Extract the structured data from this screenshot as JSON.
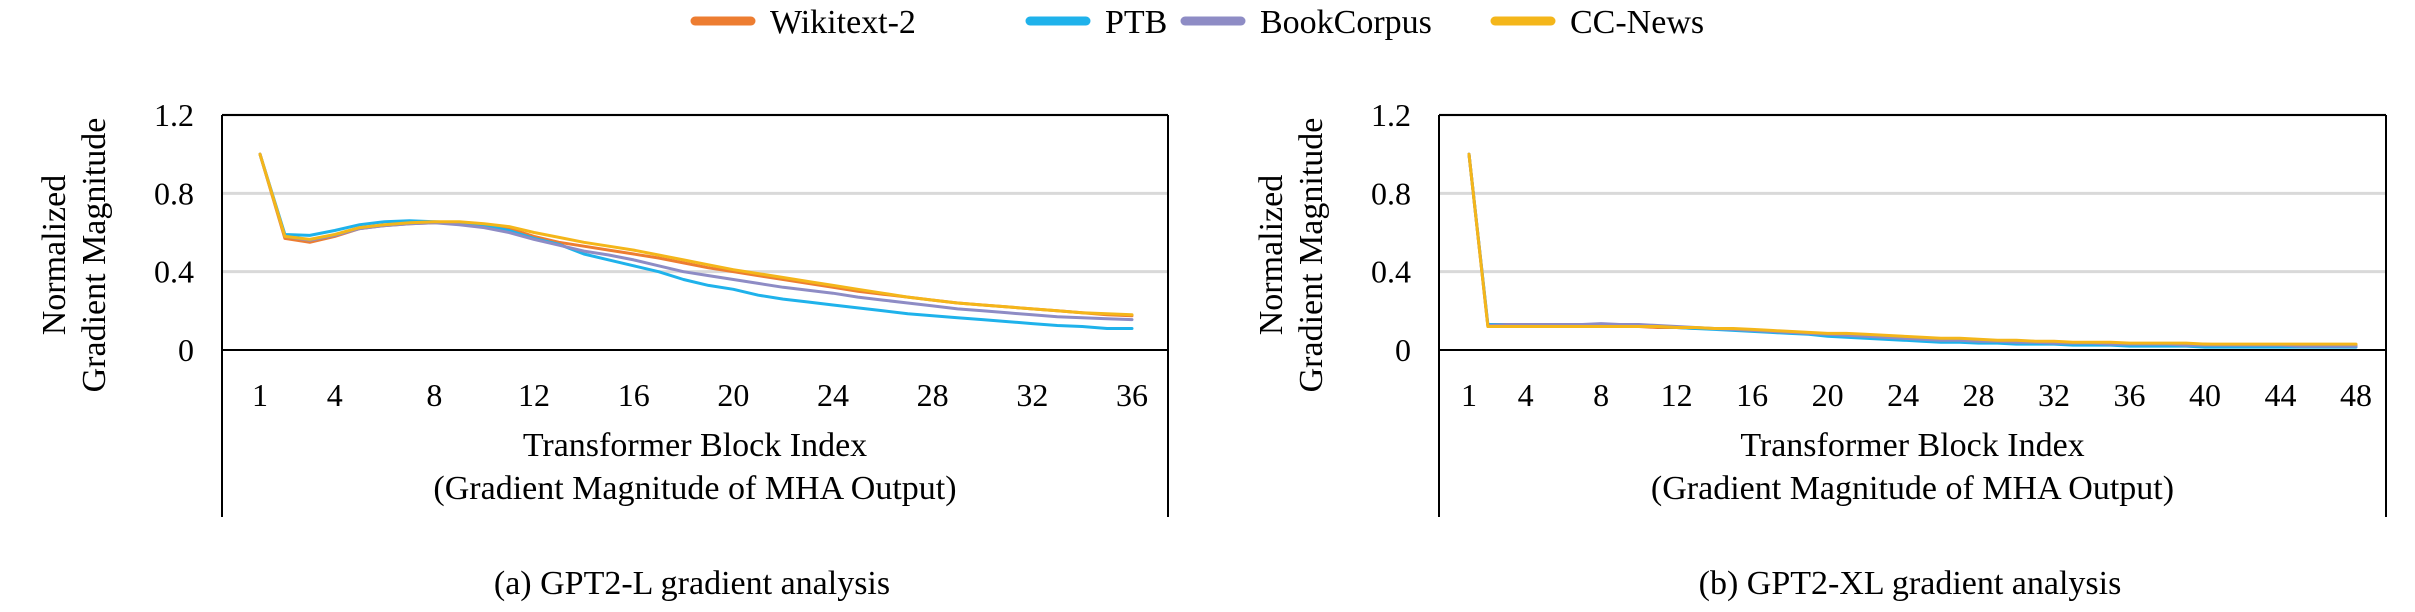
{
  "legend": [
    {
      "name": "Wikitext-2",
      "color": "#ED7D31"
    },
    {
      "name": "PTB",
      "color": "#1FB2EB"
    },
    {
      "name": "BookCorpus",
      "color": "#8E8CC5"
    },
    {
      "name": "CC-News",
      "color": "#F4B61A"
    }
  ],
  "chart_data": [
    {
      "type": "line",
      "caption": "(a) GPT2-L gradient analysis",
      "ylabel": [
        "Normalized",
        "Gradient Magnitude"
      ],
      "xlabel": "Transformer Block Index",
      "xlabel2": "(Gradient Magnitude of MHA Output)",
      "ylim": [
        0,
        1.2
      ],
      "yticks": [
        "0",
        "0.4",
        "0.8",
        "1.2"
      ],
      "xmin": 1,
      "xmax": 36,
      "xticks": [
        1,
        4,
        8,
        12,
        16,
        20,
        24,
        28,
        32,
        36
      ],
      "grid": true,
      "series": [
        {
          "name": "Wikitext-2",
          "color": "#ED7D31",
          "values": [
            1.0,
            0.57,
            0.55,
            0.58,
            0.62,
            0.635,
            0.645,
            0.65,
            0.65,
            0.64,
            0.62,
            0.58,
            0.55,
            0.53,
            0.51,
            0.49,
            0.47,
            0.445,
            0.42,
            0.4,
            0.38,
            0.36,
            0.34,
            0.32,
            0.3,
            0.285,
            0.27,
            0.255,
            0.24,
            0.23,
            0.22,
            0.21,
            0.2,
            0.19,
            0.18,
            0.175
          ]
        },
        {
          "name": "PTB",
          "color": "#1FB2EB",
          "values": [
            1.0,
            0.59,
            0.585,
            0.61,
            0.64,
            0.655,
            0.66,
            0.655,
            0.65,
            0.635,
            0.61,
            0.57,
            0.54,
            0.49,
            0.46,
            0.43,
            0.4,
            0.36,
            0.33,
            0.31,
            0.28,
            0.26,
            0.245,
            0.23,
            0.215,
            0.2,
            0.185,
            0.175,
            0.165,
            0.155,
            0.145,
            0.135,
            0.125,
            0.12,
            0.11,
            0.11
          ]
        },
        {
          "name": "BookCorpus",
          "color": "#8E8CC5",
          "values": [
            1.0,
            0.58,
            0.56,
            0.585,
            0.62,
            0.635,
            0.645,
            0.65,
            0.64,
            0.625,
            0.6,
            0.565,
            0.535,
            0.505,
            0.485,
            0.46,
            0.43,
            0.4,
            0.38,
            0.36,
            0.34,
            0.32,
            0.305,
            0.29,
            0.27,
            0.255,
            0.24,
            0.225,
            0.21,
            0.2,
            0.19,
            0.18,
            0.17,
            0.165,
            0.16,
            0.155
          ]
        },
        {
          "name": "CC-News",
          "color": "#F4B61A",
          "values": [
            1.0,
            0.58,
            0.565,
            0.59,
            0.625,
            0.64,
            0.65,
            0.655,
            0.655,
            0.645,
            0.63,
            0.6,
            0.575,
            0.55,
            0.53,
            0.51,
            0.485,
            0.46,
            0.435,
            0.41,
            0.39,
            0.37,
            0.35,
            0.33,
            0.31,
            0.29,
            0.27,
            0.255,
            0.24,
            0.23,
            0.22,
            0.21,
            0.2,
            0.19,
            0.185,
            0.18
          ]
        }
      ]
    },
    {
      "type": "line",
      "caption": "(b) GPT2-XL gradient analysis",
      "ylabel": [
        "Normalized",
        "Gradient Magnitude"
      ],
      "xlabel": "Transformer Block Index",
      "xlabel2": "(Gradient Magnitude of MHA Output)",
      "ylim": [
        0,
        1.2
      ],
      "yticks": [
        "0",
        "0.4",
        "0.8",
        "1.2"
      ],
      "xmin": 1,
      "xmax": 48,
      "xticks": [
        1,
        4,
        8,
        12,
        16,
        20,
        24,
        28,
        32,
        36,
        40,
        44,
        48
      ],
      "grid": true,
      "series": [
        {
          "name": "Wikitext-2",
          "color": "#ED7D31",
          "values": [
            1.0,
            0.12,
            0.12,
            0.12,
            0.12,
            0.12,
            0.12,
            0.12,
            0.12,
            0.12,
            0.115,
            0.115,
            0.11,
            0.11,
            0.105,
            0.1,
            0.095,
            0.09,
            0.085,
            0.08,
            0.075,
            0.07,
            0.065,
            0.06,
            0.055,
            0.05,
            0.05,
            0.045,
            0.045,
            0.04,
            0.04,
            0.04,
            0.035,
            0.035,
            0.035,
            0.03,
            0.03,
            0.03,
            0.03,
            0.03,
            0.025,
            0.025,
            0.025,
            0.025,
            0.025,
            0.025,
            0.025,
            0.025
          ]
        },
        {
          "name": "PTB",
          "color": "#1FB2EB",
          "values": [
            1.0,
            0.13,
            0.13,
            0.13,
            0.13,
            0.13,
            0.13,
            0.13,
            0.13,
            0.125,
            0.12,
            0.115,
            0.11,
            0.105,
            0.1,
            0.095,
            0.09,
            0.085,
            0.08,
            0.07,
            0.065,
            0.06,
            0.055,
            0.05,
            0.045,
            0.04,
            0.04,
            0.035,
            0.035,
            0.03,
            0.03,
            0.03,
            0.025,
            0.025,
            0.025,
            0.02,
            0.02,
            0.02,
            0.02,
            0.015,
            0.015,
            0.015,
            0.015,
            0.015,
            0.015,
            0.015,
            0.015,
            0.015
          ]
        },
        {
          "name": "BookCorpus",
          "color": "#8E8CC5",
          "values": [
            1.0,
            0.125,
            0.13,
            0.13,
            0.13,
            0.13,
            0.13,
            0.135,
            0.13,
            0.13,
            0.125,
            0.12,
            0.115,
            0.11,
            0.105,
            0.1,
            0.095,
            0.09,
            0.085,
            0.08,
            0.075,
            0.07,
            0.065,
            0.06,
            0.055,
            0.05,
            0.05,
            0.045,
            0.045,
            0.04,
            0.04,
            0.035,
            0.035,
            0.035,
            0.03,
            0.03,
            0.03,
            0.03,
            0.025,
            0.025,
            0.025,
            0.025,
            0.025,
            0.025,
            0.02,
            0.02,
            0.02,
            0.02
          ]
        },
        {
          "name": "CC-News",
          "color": "#F4B61A",
          "values": [
            1.0,
            0.12,
            0.12,
            0.12,
            0.12,
            0.12,
            0.12,
            0.12,
            0.12,
            0.12,
            0.12,
            0.115,
            0.115,
            0.11,
            0.11,
            0.105,
            0.1,
            0.095,
            0.09,
            0.085,
            0.085,
            0.08,
            0.075,
            0.07,
            0.065,
            0.06,
            0.06,
            0.055,
            0.05,
            0.05,
            0.045,
            0.045,
            0.04,
            0.04,
            0.04,
            0.035,
            0.035,
            0.035,
            0.035,
            0.03,
            0.03,
            0.03,
            0.03,
            0.03,
            0.03,
            0.03,
            0.03,
            0.03
          ]
        }
      ]
    }
  ]
}
